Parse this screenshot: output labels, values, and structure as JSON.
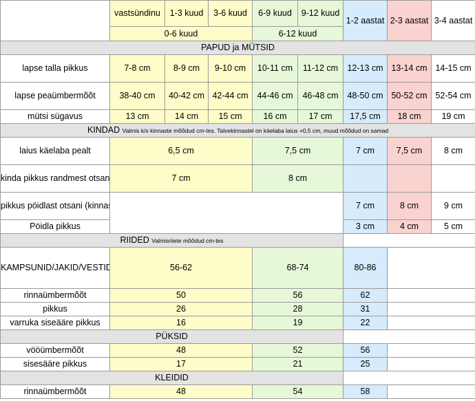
{
  "header": {
    "age_columns": [
      "vastsündinu",
      "1-3 kuud",
      "3-6 kuud",
      "6-9 kuud",
      "9-12 kuud",
      "1-2 aastat",
      "2-3 aastat",
      "3-4 aastat"
    ],
    "group_0_6": "0-6 kuud",
    "group_6_12": "6-12 kuud"
  },
  "colors": {
    "yellow": "#fefcc8",
    "green": "#e6f8d8",
    "blue": "#d6ecfc",
    "pink": "#fad2d0",
    "header_gray": "#e3e3e3"
  },
  "papud": {
    "title": "PAPUD ja MÜTSID",
    "rows": [
      {
        "label": "lapse talla pikkus",
        "values": [
          "7-8 cm",
          "8-9 cm",
          "9-10 cm",
          "10-11 cm",
          "11-12 cm",
          "12-13 cm",
          "13-14 cm",
          "14-15 cm"
        ]
      },
      {
        "label": "lapse peaümbermõõt",
        "values": [
          "38-40 cm",
          "40-42 cm",
          "42-44 cm",
          "44-46 cm",
          "46-48 cm",
          "48-50 cm",
          "50-52 cm",
          "52-54 cm"
        ]
      },
      {
        "label": "mütsi sügavus",
        "values": [
          "13 cm",
          "14 cm",
          "15 cm",
          "16 cm",
          "17 cm",
          "17,5 cm",
          "18 cm",
          "19 cm"
        ]
      }
    ]
  },
  "kindad": {
    "title": "KINDAD",
    "note": "Valmis k/s kinnaste mõõdud cm-tes. Talvekinnastel on käelaba laius +0,5 cm, muud mõõdud on samad",
    "row_width": {
      "label": "laius käelaba pealt",
      "values": [
        "6,5 cm",
        "7,5  cm",
        "7 cm",
        "7,5 cm",
        "8 cm"
      ]
    },
    "row_length": {
      "label": "kinda pikkus randmest otsani (käpukatel)",
      "values": [
        "7 cm",
        "8 cm"
      ]
    },
    "row_thumb_to_tip": {
      "label": "pikkus pöidlast otsani (kinnastel )",
      "values": [
        "7 cm",
        "8 cm",
        "9 cm"
      ]
    },
    "row_thumb": {
      "label": "Pöidla pikkus",
      "values": [
        "3 cm",
        "4 cm",
        "5 cm"
      ]
    }
  },
  "riided": {
    "title": "RIIDED",
    "note": "Valmisriiete mõõdud cm-tes",
    "sizes_label": "KAMPSUNID/JAKID/VESTID",
    "sizes": [
      "56-62",
      "68-74",
      "80-86"
    ],
    "rows": [
      {
        "label": "rinnaümbermõõt",
        "values": [
          "50",
          "56",
          "62"
        ]
      },
      {
        "label": "pikkus",
        "values": [
          "26",
          "28",
          "31"
        ]
      },
      {
        "label": "varruka siseääre pikkus",
        "values": [
          "16",
          "19",
          "22"
        ]
      }
    ]
  },
  "puksid": {
    "title": "PÜKSID",
    "rows": [
      {
        "label": "vööümbermõõt",
        "values": [
          "48",
          "52",
          "56"
        ]
      },
      {
        "label": "sisesääre pikkus",
        "values": [
          "17",
          "21",
          "25"
        ]
      }
    ]
  },
  "kleidid": {
    "title": "KLEIDID",
    "rows": [
      {
        "label": "rinnaümbermõõt",
        "values": [
          "48",
          "54",
          "58"
        ]
      }
    ]
  }
}
